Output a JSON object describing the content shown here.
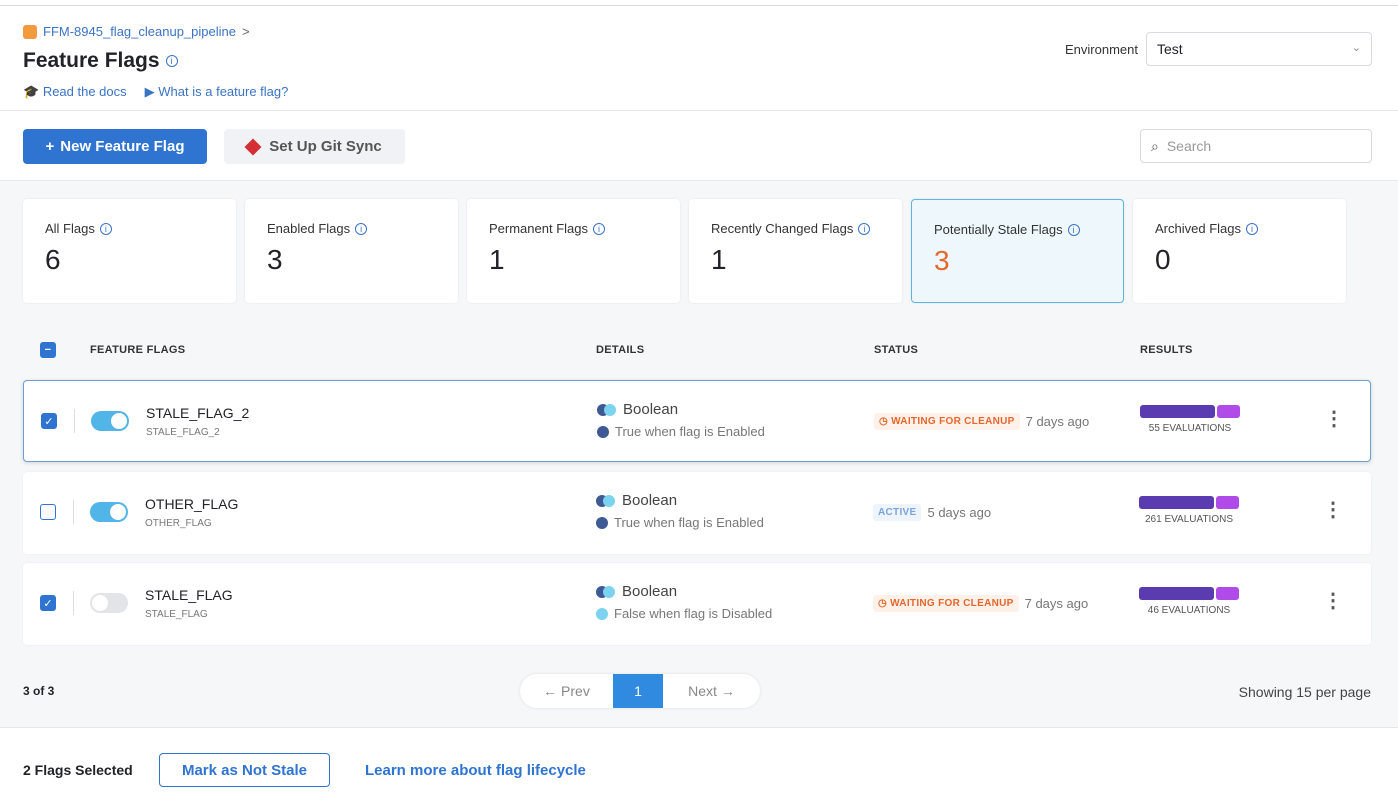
{
  "breadcrumb": {
    "project": "FFM-8945_flag_cleanup_pipeline",
    "chevron": ">"
  },
  "header": {
    "title": "Feature Flags",
    "docs_link": "Read the docs",
    "video_link": "What is a feature flag?",
    "environment_label": "Environment",
    "environment_value": "Test"
  },
  "toolbar": {
    "new_flag": "New Feature Flag",
    "git_sync": "Set Up Git Sync",
    "search_placeholder": "Search"
  },
  "cards": [
    {
      "label": "All Flags",
      "value": "6"
    },
    {
      "label": "Enabled Flags",
      "value": "3"
    },
    {
      "label": "Permanent Flags",
      "value": "1"
    },
    {
      "label": "Recently Changed Flags",
      "value": "1"
    },
    {
      "label": "Potentially Stale Flags",
      "value": "3",
      "selected": true
    },
    {
      "label": "Archived Flags",
      "value": "0"
    }
  ],
  "table": {
    "headers": [
      "FEATURE FLAGS",
      "DETAILS",
      "STATUS",
      "RESULTS"
    ],
    "rows": [
      {
        "checked": true,
        "enabled": true,
        "name": "STALE_FLAG_2",
        "id": "STALE_FLAG_2",
        "type": "Boolean",
        "detail": "True when flag is Enabled",
        "status": "WAITING FOR CLEANUP",
        "time": "7 days ago",
        "evaluations": "55 EVALUATIONS"
      },
      {
        "checked": false,
        "enabled": true,
        "name": "OTHER_FLAG",
        "id": "OTHER_FLAG",
        "type": "Boolean",
        "detail": "True when flag is Enabled",
        "status": "ACTIVE",
        "time": "5 days ago",
        "evaluations": "261 EVALUATIONS"
      },
      {
        "checked": true,
        "enabled": false,
        "name": "STALE_FLAG",
        "id": "STALE_FLAG",
        "type": "Boolean",
        "detail": "False when flag is Disabled",
        "status": "WAITING FOR CLEANUP",
        "time": "7 days ago",
        "evaluations": "46 EVALUATIONS"
      }
    ]
  },
  "pagination": {
    "count": "3 of 3",
    "prev": "← Prev",
    "page": "1",
    "next": "Next →",
    "per_page": "Showing 15 per page"
  },
  "footer": {
    "selected": "2 Flags Selected",
    "mark_not_stale": "Mark as Not Stale",
    "learn_more": "Learn more about flag lifecycle"
  },
  "colors": {
    "primary": "#2f74d0",
    "stale": "#e5672d",
    "active": "#7ba3dc",
    "eval_true": "#5a3bb0",
    "eval_false": "#b04ae8"
  }
}
